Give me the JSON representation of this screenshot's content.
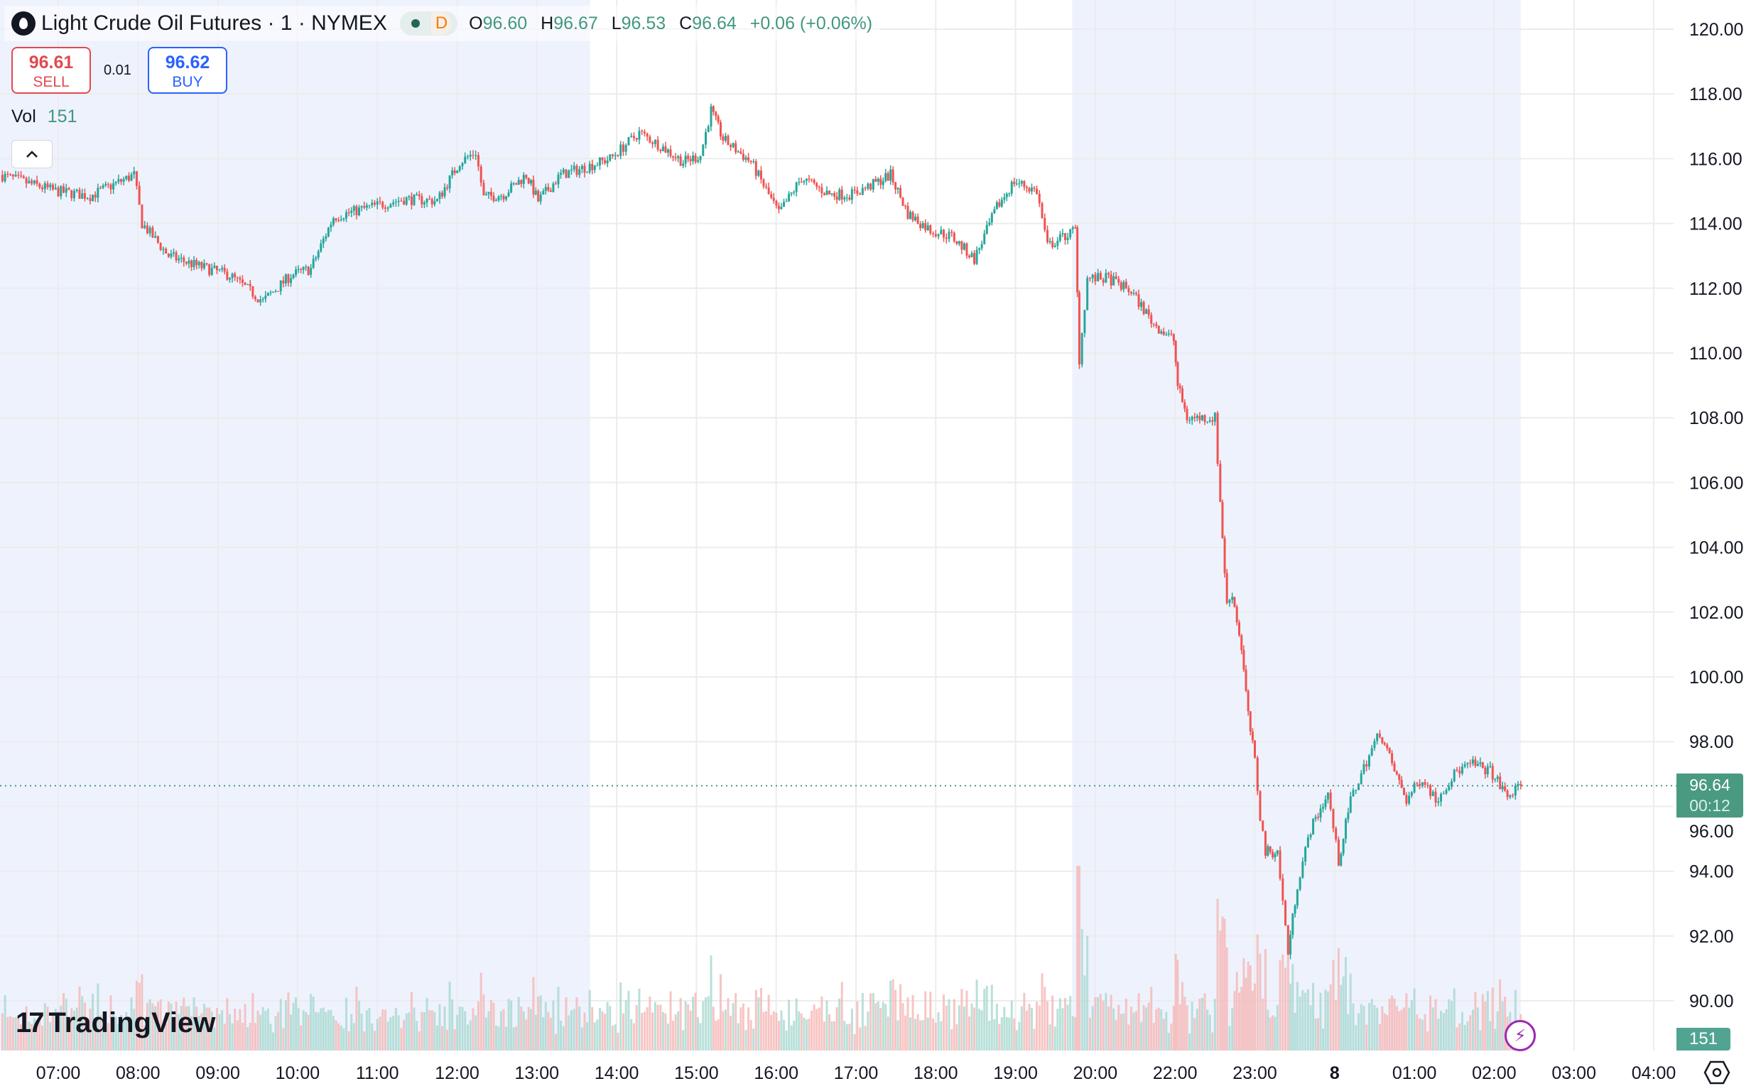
{
  "header": {
    "symbol_title": "Light Crude Oil Futures · 1 · NYMEX",
    "symbol_icon": "oil-drop-icon",
    "market_status_letter": "D",
    "ohlc": {
      "o_label": "O",
      "o": "96.60",
      "h_label": "H",
      "h": "96.67",
      "l_label": "L",
      "l": "96.53",
      "c_label": "C",
      "c": "96.64",
      "change": "+0.06 (+0.06%)"
    }
  },
  "trade": {
    "sell_price": "96.61",
    "sell_label": "SELL",
    "spread": "0.01",
    "buy_price": "96.62",
    "buy_label": "BUY"
  },
  "volume_legend": {
    "label": "Vol",
    "value": "151"
  },
  "branding": {
    "logo_text": "TradingView"
  },
  "last_price_tag": {
    "price": "96.64",
    "countdown": "00:12"
  },
  "volume_tag": "151",
  "colors": {
    "up": "#26a69a",
    "down": "#ef5350",
    "session_shade": "#eef2fd",
    "last_price": "#4a9a82",
    "grid": "#f0f0f0"
  },
  "chart_data": {
    "type": "candlestick",
    "interval": "1",
    "ylim": [
      89.3,
      120.6
    ],
    "y_ticks": [
      "120.00",
      "118.00",
      "116.00",
      "114.00",
      "112.00",
      "110.00",
      "108.00",
      "106.00",
      "104.00",
      "102.00",
      "100.00",
      "98.00",
      "96.00",
      "94.00",
      "92.00",
      "90.00"
    ],
    "x_ticks": [
      {
        "label": "07:00",
        "time": "07:00"
      },
      {
        "label": "08:00",
        "time": "08:00"
      },
      {
        "label": "09:00",
        "time": "09:00"
      },
      {
        "label": "10:00",
        "time": "10:00"
      },
      {
        "label": "11:00",
        "time": "11:00"
      },
      {
        "label": "12:00",
        "time": "12:00"
      },
      {
        "label": "13:00",
        "time": "13:00"
      },
      {
        "label": "14:00",
        "time": "14:00"
      },
      {
        "label": "15:00",
        "time": "15:00"
      },
      {
        "label": "16:00",
        "time": "16:00"
      },
      {
        "label": "17:00",
        "time": "17:00"
      },
      {
        "label": "18:00",
        "time": "18:00"
      },
      {
        "label": "19:00",
        "time": "19:00"
      },
      {
        "label": "20:00",
        "time": "20:00"
      },
      {
        "label": "22:00",
        "time": "22:00"
      },
      {
        "label": "23:00",
        "time": "23:00"
      },
      {
        "label": "8",
        "time": "00:00"
      },
      {
        "label": "01:00",
        "time": "01:00"
      },
      {
        "label": "02:00",
        "time": "02:00"
      },
      {
        "label": "03:00",
        "time": "03:00"
      },
      {
        "label": "04:00",
        "time": "04:00"
      }
    ],
    "shaded_sessions": [
      [
        "06:16",
        "13:40"
      ],
      [
        "20:04",
        "02:20"
      ]
    ],
    "last_price": 96.64,
    "price_path": [
      [
        "06:16",
        115.5
      ],
      [
        "06:58",
        115.0
      ],
      [
        "07:24",
        114.85
      ],
      [
        "07:57",
        115.5
      ],
      [
        "08:03",
        114.0
      ],
      [
        "08:23",
        113.0
      ],
      [
        "08:44",
        112.7
      ],
      [
        "09:09",
        112.4
      ],
      [
        "09:34",
        111.6
      ],
      [
        "09:55",
        112.4
      ],
      [
        "10:10",
        112.6
      ],
      [
        "10:27",
        114.2
      ],
      [
        "10:54",
        114.5
      ],
      [
        "11:20",
        114.75
      ],
      [
        "11:45",
        114.7
      ],
      [
        "12:02",
        115.9
      ],
      [
        "12:14",
        116.2
      ],
      [
        "12:20",
        114.8
      ],
      [
        "12:35",
        114.9
      ],
      [
        "12:52",
        115.5
      ],
      [
        "13:01",
        114.7
      ],
      [
        "13:18",
        115.5
      ],
      [
        "13:34",
        115.7
      ],
      [
        "13:55",
        116.0
      ],
      [
        "14:17",
        116.8
      ],
      [
        "14:33",
        116.4
      ],
      [
        "14:50",
        115.9
      ],
      [
        "15:03",
        116.1
      ],
      [
        "15:11",
        117.5
      ],
      [
        "15:20",
        116.6
      ],
      [
        "15:41",
        115.9
      ],
      [
        "16:02",
        114.3
      ],
      [
        "16:19",
        115.4
      ],
      [
        "16:40",
        114.9
      ],
      [
        "16:57",
        114.9
      ],
      [
        "17:13",
        115.2
      ],
      [
        "17:26",
        115.5
      ],
      [
        "17:39",
        114.3
      ],
      [
        "17:56",
        113.8
      ],
      [
        "18:12",
        113.6
      ],
      [
        "18:29",
        112.9
      ],
      [
        "18:46",
        114.5
      ],
      [
        "18:59",
        115.3
      ],
      [
        "19:16",
        115.0
      ],
      [
        "19:24",
        113.3
      ],
      [
        "19:45",
        113.8
      ],
      [
        "19:48",
        109.8
      ],
      [
        "19:54",
        112.3
      ],
      [
        "20:10",
        112.3
      ],
      [
        "20:27",
        111.9
      ],
      [
        "20:44",
        110.9
      ],
      [
        "20:59",
        110.4
      ],
      [
        "22:02",
        109.0
      ],
      [
        "22:09",
        108.0
      ],
      [
        "22:30",
        108.0
      ],
      [
        "22:34",
        105.4
      ],
      [
        "22:39",
        102.2
      ],
      [
        "22:43",
        102.6
      ],
      [
        "22:50",
        100.9
      ],
      [
        "22:55",
        98.8
      ],
      [
        "23:00",
        97.4
      ],
      [
        "23:04",
        95.7
      ],
      [
        "23:08",
        94.6
      ],
      [
        "23:17",
        94.6
      ],
      [
        "23:25",
        91.5
      ],
      [
        "23:32",
        93.6
      ],
      [
        "23:42",
        95.3
      ],
      [
        "23:55",
        96.4
      ],
      [
        "00:03",
        94.3
      ],
      [
        "00:12",
        96.2
      ],
      [
        "00:24",
        97.4
      ],
      [
        "00:34",
        98.3
      ],
      [
        "00:45",
        97.1
      ],
      [
        "00:54",
        96.2
      ],
      [
        "01:06",
        96.9
      ],
      [
        "01:16",
        96.2
      ],
      [
        "01:32",
        97.1
      ],
      [
        "01:44",
        97.3
      ],
      [
        "01:57",
        97.1
      ],
      [
        "02:10",
        96.3
      ],
      [
        "02:20",
        96.64
      ]
    ]
  }
}
